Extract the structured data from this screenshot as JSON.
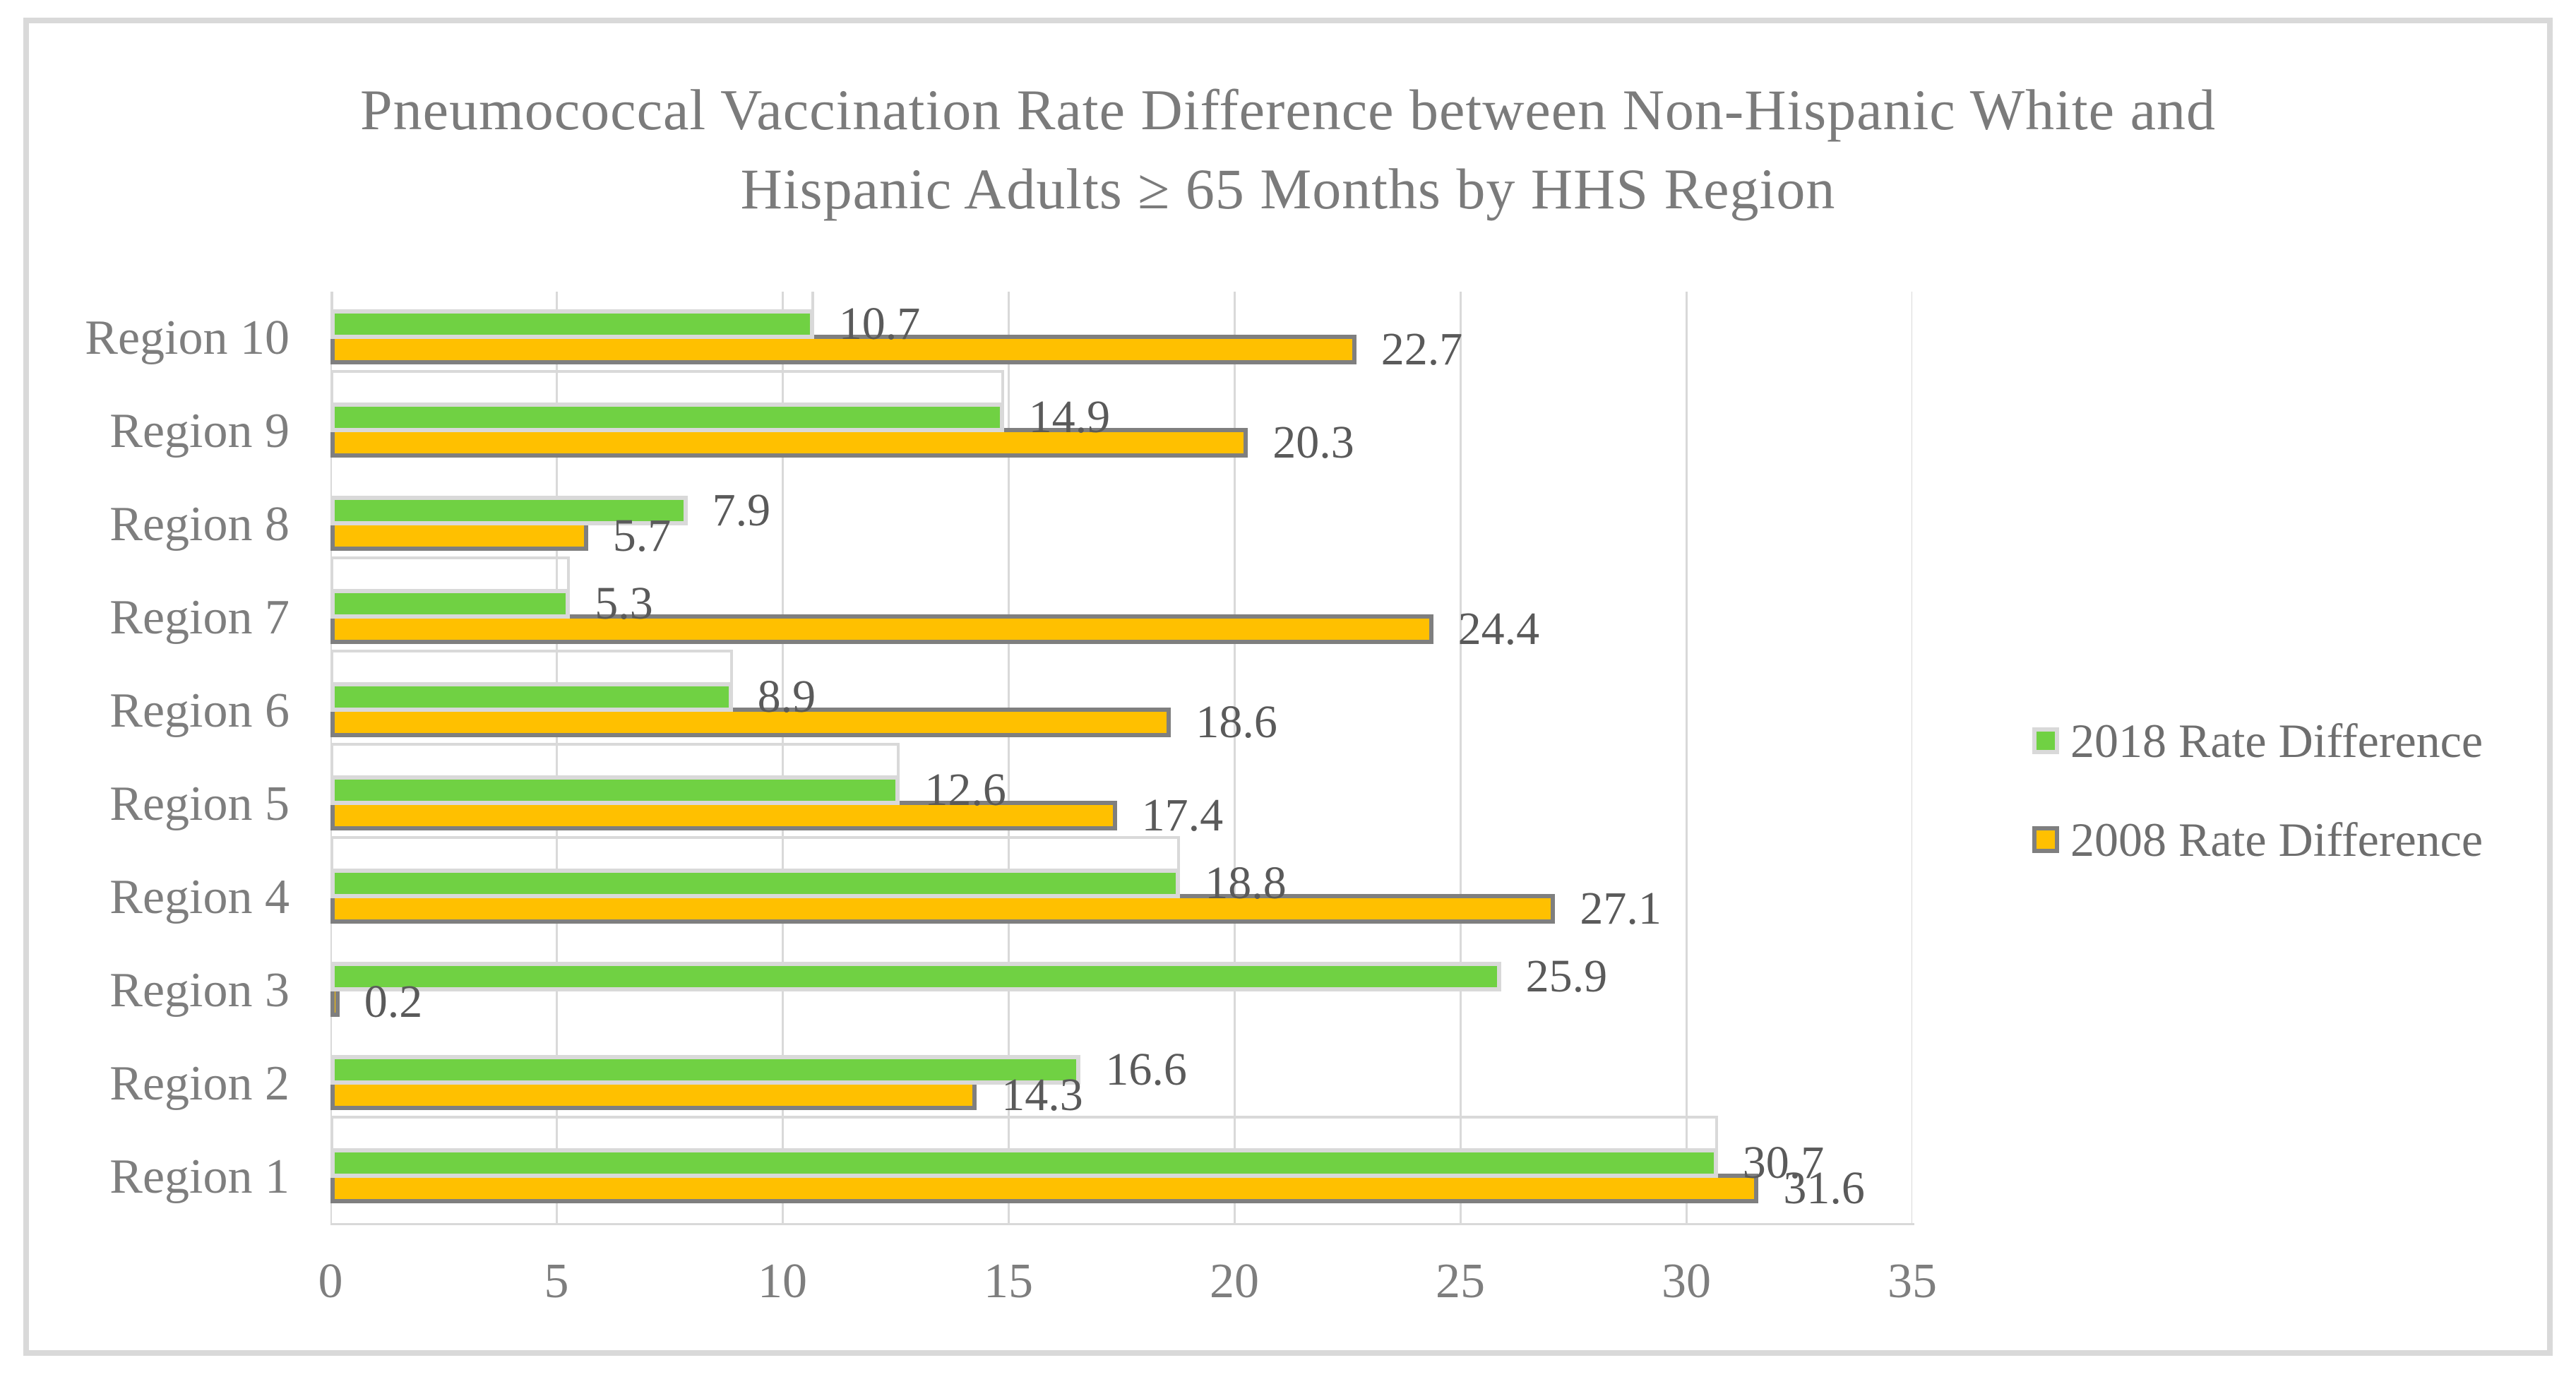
{
  "title": {
    "line1": "Pneumococcal Vaccination Rate Difference between Non-Hispanic White and",
    "line2": "Hispanic Adults ≥ 65 Months by HHS Region"
  },
  "legend": [
    {
      "label": "2018 Rate Difference",
      "color": "#70D143",
      "border": "#D9D9D9"
    },
    {
      "label": "2008 Rate Difference",
      "color": "#FFC000",
      "border": "#7F7F7F"
    }
  ],
  "chart_data": {
    "type": "bar",
    "orientation": "horizontal",
    "title": "Pneumococcal Vaccination Rate Difference between Non-Hispanic White and Hispanic Adults ≥ 65 Months by HHS Region",
    "categories": [
      "Region 10",
      "Region 9",
      "Region 8",
      "Region 7",
      "Region 6",
      "Region 5",
      "Region 4",
      "Region 3",
      "Region 2",
      "Region 1"
    ],
    "series": [
      {
        "name": "2018 Rate Difference",
        "values": [
          10.7,
          14.9,
          7.9,
          5.3,
          8.9,
          12.6,
          18.8,
          25.9,
          16.6,
          30.7
        ]
      },
      {
        "name": "2008 Rate Difference",
        "values": [
          22.7,
          20.3,
          5.7,
          24.4,
          18.6,
          17.4,
          27.1,
          0.2,
          14.3,
          31.6
        ]
      }
    ],
    "xlim": [
      0,
      35
    ],
    "xticks": [
      0,
      5,
      10,
      15,
      20,
      25,
      30,
      35
    ],
    "grid": "vertical-gridlines-on",
    "legend_position": "right",
    "data_labels": "one-decimal, right of bar end"
  },
  "colors": {
    "bar_2018_fill": "#70D143",
    "bar_2018_border": "#D9D9D9",
    "bar_2008_fill": "#FFC000",
    "bar_2008_border": "#7F7F7F",
    "gridline": "#D9D9D9",
    "frame_border": "#D9D9D9",
    "title_text": "#7B7B7B",
    "axis_text": "#7E7E7E",
    "value_text": "#5A5A5A",
    "legend_text": "#6E6E6E"
  }
}
